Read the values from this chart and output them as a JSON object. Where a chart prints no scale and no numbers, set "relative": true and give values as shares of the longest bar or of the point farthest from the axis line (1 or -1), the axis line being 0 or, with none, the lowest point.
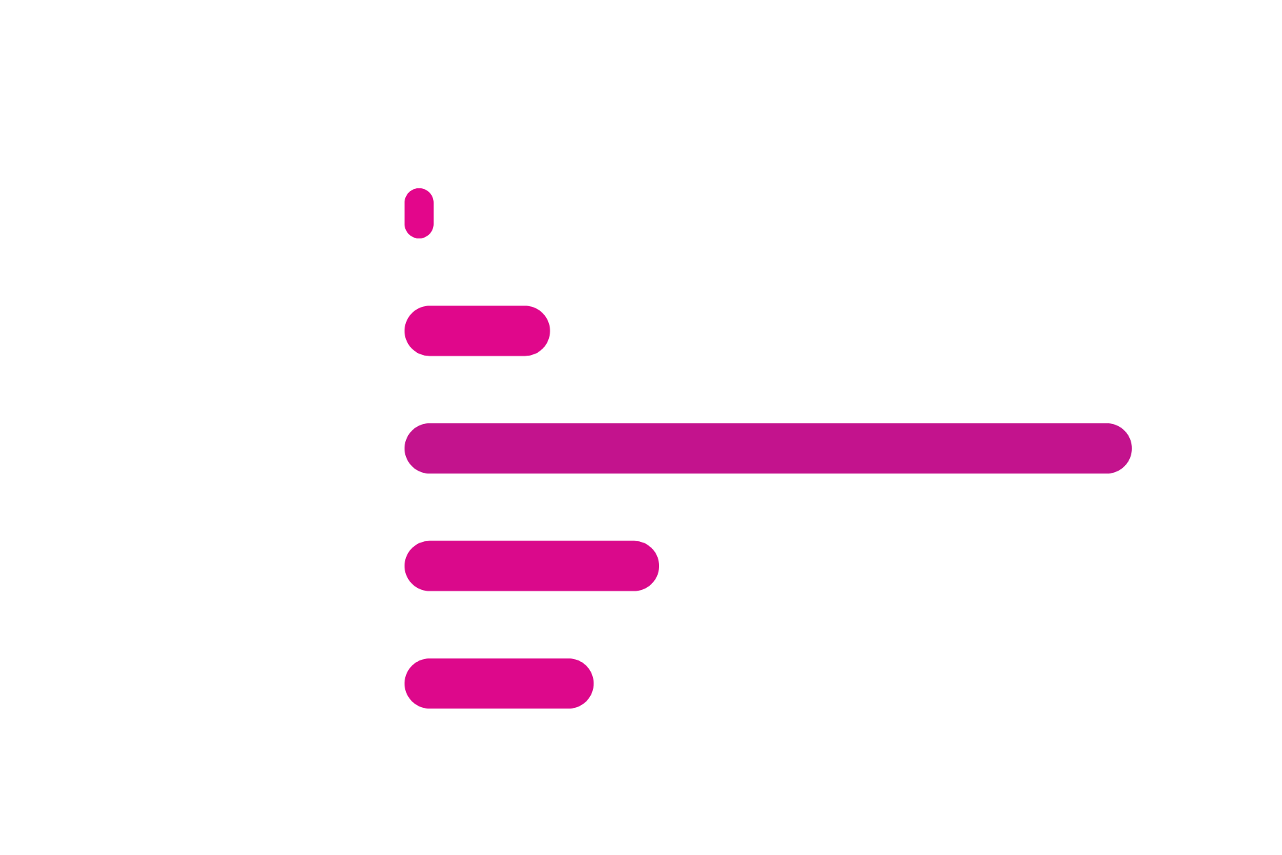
{
  "chart_data": {
    "type": "bar",
    "orientation": "horizontal",
    "relative": true,
    "categories": [
      null,
      null,
      null,
      null,
      null
    ],
    "values": [
      0.04,
      0.2,
      1,
      0.35,
      0.26
    ],
    "colors": [
      "#e3068b",
      "#e0078b",
      "#c3138d",
      "#da098b",
      "#dd088b"
    ]
  }
}
